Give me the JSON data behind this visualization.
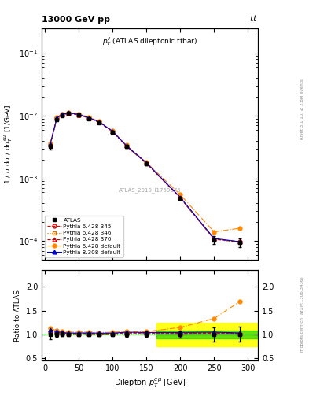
{
  "title_top": "13000 GeV pp",
  "title_top_right": "t$\\bar{t}$",
  "inner_title": "$p_T^{ll}$ (ATLAS dileptonic ttbar)",
  "watermark": "ATLAS_2019_I1759875",
  "xlabel": "Dilepton $p_T^{e\\mu}$ [GeV]",
  "ylabel": "1 / $\\sigma$ d$\\sigma$ / d$p_T^{e\\mu}$ [1/GeV]",
  "ratio_ylabel": "Ratio to ATLAS",
  "xp": [
    7.5,
    17.5,
    25.0,
    35.0,
    50.0,
    65.0,
    80.0,
    100.0,
    120.0,
    150.0,
    200.0,
    250.0,
    287.5
  ],
  "atlas_y": [
    0.0032,
    0.0088,
    0.0101,
    0.0108,
    0.0102,
    0.009,
    0.0078,
    0.0055,
    0.0032,
    0.0017,
    0.00048,
    0.000105,
    9.5e-05
  ],
  "atlas_yerr": [
    0.0003,
    0.0004,
    0.0004,
    0.0004,
    0.0004,
    0.0003,
    0.0003,
    0.0002,
    0.00015,
    0.0001,
    3e-05,
    1.5e-05,
    1.5e-05
  ],
  "py345_y": [
    0.0034,
    0.0092,
    0.0104,
    0.011,
    0.0104,
    0.0092,
    0.0079,
    0.0056,
    0.0033,
    0.00175,
    0.00049,
    0.000108,
    9.7e-05
  ],
  "py346_y": [
    0.00335,
    0.0091,
    0.0103,
    0.0109,
    0.0103,
    0.0091,
    0.00785,
    0.00555,
    0.00325,
    0.00172,
    0.000485,
    0.000106,
    9.6e-05
  ],
  "py370_y": [
    0.0034,
    0.0092,
    0.0104,
    0.011,
    0.0104,
    0.0092,
    0.0079,
    0.0056,
    0.0033,
    0.00175,
    0.00049,
    0.000108,
    9.7e-05
  ],
  "pydef_y": [
    0.0036,
    0.0095,
    0.0107,
    0.0113,
    0.0107,
    0.0095,
    0.0081,
    0.00575,
    0.0034,
    0.0018,
    0.00055,
    0.00014,
    0.00016
  ],
  "py8def_y": [
    0.0035,
    0.0093,
    0.0105,
    0.0111,
    0.0105,
    0.0093,
    0.008,
    0.00565,
    0.00335,
    0.00177,
    0.0005,
    0.00011,
    9.8e-05
  ],
  "colors": {
    "atlas": "#000000",
    "py345": "#e60000",
    "py346": "#cc7700",
    "py370": "#cc0000",
    "pydef": "#ff8800",
    "py8def": "#0000cc"
  },
  "band_xmin": 165,
  "band_xmax": 315,
  "xmax": 315,
  "green_band": [
    0.92,
    1.08
  ],
  "yellow_band": [
    0.75,
    1.25
  ],
  "ylim_main": [
    5e-05,
    0.25
  ],
  "ylim_ratio": [
    0.45,
    2.35
  ],
  "ratio_yticks": [
    0.5,
    1.0,
    1.5,
    2.0
  ],
  "xticks_main": [
    0,
    50,
    100,
    150,
    200,
    250,
    300
  ],
  "xticks_ratio": [
    0,
    50,
    100,
    150,
    200,
    250,
    300
  ]
}
